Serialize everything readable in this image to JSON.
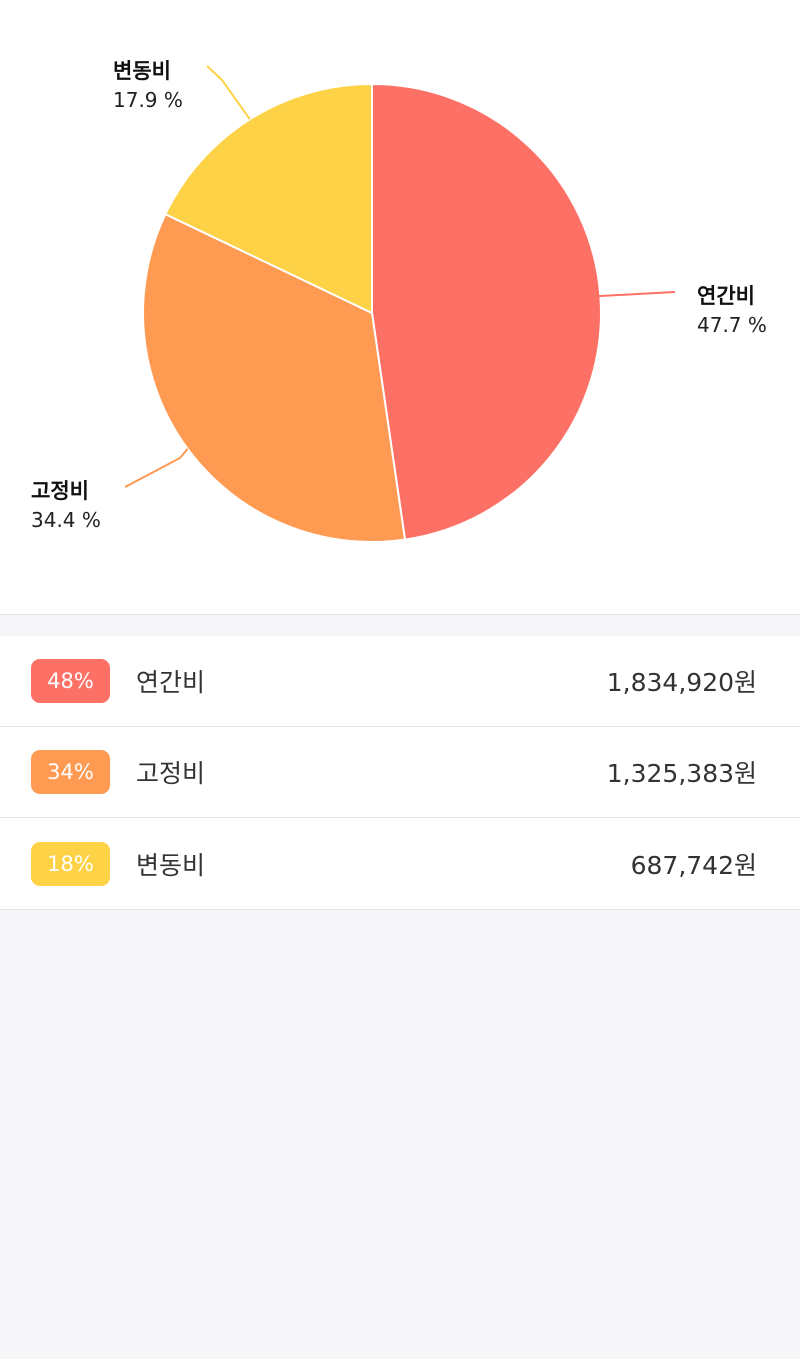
{
  "colors": {
    "annual": "#fd7065",
    "fixed": "#fe9a52",
    "variable": "#fed246"
  },
  "chart_data": {
    "type": "pie",
    "slices": [
      {
        "name": "연간비",
        "value": 47.7,
        "label": "47.7 %",
        "color": "#fd7065"
      },
      {
        "name": "고정비",
        "value": 34.4,
        "label": "34.4 %",
        "color": "#fe9a52"
      },
      {
        "name": "변동비",
        "value": 17.9,
        "label": "17.9 %",
        "color": "#fed246"
      }
    ],
    "start_angle_deg": 0,
    "direction": "clockwise"
  },
  "breakdown": {
    "rows": [
      {
        "badge": "48%",
        "label": "연간비",
        "amount": "1,834,920원",
        "color": "#fd7065"
      },
      {
        "badge": "34%",
        "label": "고정비",
        "amount": "1,325,383원",
        "color": "#fe9a52"
      },
      {
        "badge": "18%",
        "label": "변동비",
        "amount": "687,742원",
        "color": "#fed246"
      }
    ]
  }
}
